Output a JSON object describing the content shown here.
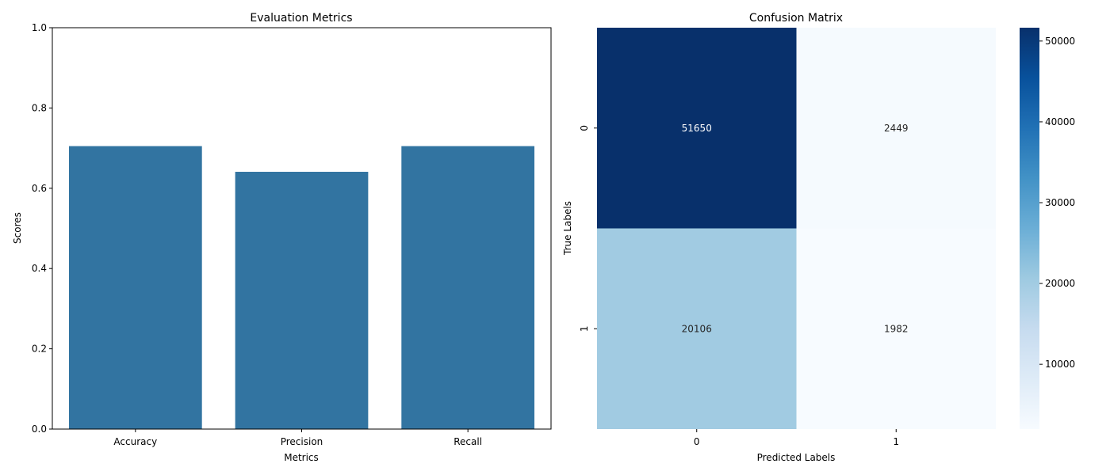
{
  "chart_data": [
    {
      "type": "bar",
      "title": "Evaluation Metrics",
      "xlabel": "Metrics",
      "ylabel": "Scores",
      "categories": [
        "Accuracy",
        "Precision",
        "Recall"
      ],
      "values": [
        0.705,
        0.641,
        0.705
      ],
      "ylim": [
        0,
        1
      ],
      "yticks": [
        "0.0",
        "0.2",
        "0.4",
        "0.6",
        "0.8",
        "1.0"
      ],
      "bar_color": "#3274a1",
      "grid": false
    },
    {
      "type": "heatmap",
      "title": "Confusion Matrix",
      "xlabel": "Predicted Labels",
      "ylabel": "True Labels",
      "x_categories": [
        "0",
        "1"
      ],
      "y_categories": [
        "0",
        "1"
      ],
      "matrix": [
        [
          51650,
          2449
        ],
        [
          20106,
          1982
        ]
      ],
      "colormap": "Blues",
      "colorbar_ticks": [
        "10000",
        "20000",
        "30000",
        "40000",
        "50000"
      ],
      "annotation_colors": {
        "dark": "#ffffff",
        "light": "#262626"
      }
    }
  ]
}
